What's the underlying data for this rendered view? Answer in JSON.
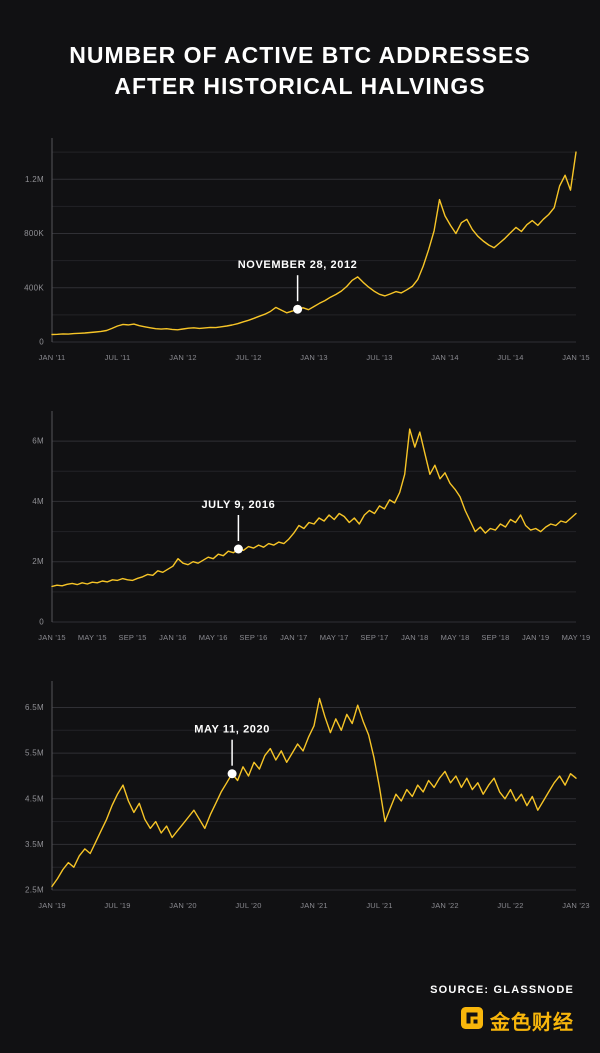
{
  "title": {
    "line1": "NUMBER OF ACTIVE BTC ADDRESSES",
    "line2": "AFTER HISTORICAL HALVINGS"
  },
  "footer": {
    "source": "SOURCE: GLASSNODE",
    "brand": "金色财经",
    "brand_icon": "jinse-logo-icon"
  },
  "colors": {
    "background": "#111113",
    "line": "#F7C527",
    "grid": "#303035",
    "grid_minor": "#232327",
    "axis": "#55555a",
    "tick_text": "#909095",
    "annotation": "#FFFFFF",
    "brand": "#F8B60B"
  },
  "chart_data": [
    {
      "type": "line",
      "y_unit": "addresses (K = thousands, M = millions)",
      "ylim": [
        0,
        1460
      ],
      "y_major_ticks": [
        {
          "value": 0,
          "label": "0"
        },
        {
          "value": 400,
          "label": "400K"
        },
        {
          "value": 800,
          "label": "800K"
        },
        {
          "value": 1200,
          "label": "1.2M"
        }
      ],
      "y_minor_ticks": [
        200,
        600,
        1000,
        1400
      ],
      "x_tick_labels": [
        "JAN '11",
        "JUL '11",
        "JAN '12",
        "JUL '12",
        "JAN '13",
        "JUL '13",
        "JAN '14",
        "JUL '14",
        "JAN '15"
      ],
      "values": [
        55,
        57,
        60,
        58,
        62,
        64,
        66,
        70,
        74,
        78,
        85,
        100,
        118,
        130,
        126,
        132,
        120,
        112,
        105,
        98,
        95,
        98,
        93,
        90,
        96,
        102,
        105,
        100,
        104,
        108,
        106,
        112,
        118,
        125,
        135,
        148,
        160,
        175,
        190,
        205,
        225,
        255,
        235,
        215,
        228,
        242,
        252,
        238,
        262,
        285,
        305,
        330,
        350,
        375,
        410,
        455,
        480,
        440,
        405,
        375,
        352,
        340,
        355,
        372,
        362,
        385,
        410,
        460,
        560,
        680,
        820,
        1050,
        930,
        860,
        800,
        880,
        905,
        830,
        780,
        745,
        715,
        695,
        730,
        765,
        805,
        845,
        815,
        865,
        895,
        860,
        905,
        940,
        990,
        1150,
        1230,
        1120,
        1400
      ],
      "annotation": {
        "label": "NOVEMBER 28, 2012",
        "point_index": 45,
        "value": 242
      }
    },
    {
      "type": "line",
      "y_unit": "addresses (M = millions)",
      "ylim": [
        0,
        6.8
      ],
      "y_major_ticks": [
        {
          "value": 0,
          "label": "0"
        },
        {
          "value": 2,
          "label": "2M"
        },
        {
          "value": 4,
          "label": "4M"
        },
        {
          "value": 6,
          "label": "6M"
        }
      ],
      "y_minor_ticks": [
        1,
        3,
        5
      ],
      "x_tick_labels": [
        "JAN '15",
        "MAY '15",
        "SEP '15",
        "JAN '16",
        "MAY '16",
        "SEP '16",
        "JAN '17",
        "MAY '17",
        "SEP '17",
        "JAN '18",
        "MAY '18",
        "SEP '18",
        "JAN '19",
        "MAY '19"
      ],
      "values": [
        1.18,
        1.22,
        1.2,
        1.25,
        1.28,
        1.24,
        1.3,
        1.26,
        1.32,
        1.3,
        1.36,
        1.33,
        1.4,
        1.38,
        1.44,
        1.4,
        1.38,
        1.45,
        1.5,
        1.58,
        1.55,
        1.7,
        1.65,
        1.75,
        1.85,
        2.1,
        1.95,
        1.9,
        2.0,
        1.95,
        2.05,
        2.15,
        2.1,
        2.25,
        2.2,
        2.35,
        2.3,
        2.42,
        2.38,
        2.5,
        2.45,
        2.55,
        2.48,
        2.6,
        2.55,
        2.65,
        2.6,
        2.75,
        2.95,
        3.2,
        3.1,
        3.3,
        3.25,
        3.45,
        3.35,
        3.55,
        3.4,
        3.6,
        3.5,
        3.3,
        3.45,
        3.25,
        3.55,
        3.7,
        3.6,
        3.85,
        3.75,
        4.05,
        3.95,
        4.3,
        4.9,
        6.4,
        5.8,
        6.3,
        5.6,
        4.9,
        5.2,
        4.75,
        4.95,
        4.6,
        4.4,
        4.15,
        3.7,
        3.35,
        3.0,
        3.15,
        2.95,
        3.1,
        3.05,
        3.25,
        3.15,
        3.4,
        3.3,
        3.55,
        3.2,
        3.05,
        3.1,
        3.0,
        3.15,
        3.25,
        3.2,
        3.35,
        3.3,
        3.45,
        3.6
      ],
      "annotation": {
        "label": "JULY 9, 2016",
        "point_index": 37,
        "value": 2.42
      }
    },
    {
      "type": "line",
      "y_unit": "addresses (M = millions)",
      "ylim": [
        2.5,
        6.95
      ],
      "y_major_ticks": [
        {
          "value": 2.5,
          "label": "2.5M"
        },
        {
          "value": 3.5,
          "label": "3.5M"
        },
        {
          "value": 4.5,
          "label": "4.5M"
        },
        {
          "value": 5.5,
          "label": "5.5M"
        },
        {
          "value": 6.5,
          "label": "6.5M"
        }
      ],
      "y_minor_ticks": [
        3.0,
        4.0,
        5.0,
        6.0
      ],
      "x_tick_labels": [
        "JAN '19",
        "JUL '19",
        "JAN '20",
        "JUL '20",
        "JAN '21",
        "JUL '21",
        "JAN '22",
        "JUL '22",
        "JAN '23"
      ],
      "values": [
        2.58,
        2.75,
        2.95,
        3.1,
        3.0,
        3.25,
        3.4,
        3.3,
        3.55,
        3.8,
        4.05,
        4.35,
        4.6,
        4.8,
        4.45,
        4.2,
        4.4,
        4.05,
        3.85,
        4.0,
        3.75,
        3.9,
        3.65,
        3.8,
        3.95,
        4.1,
        4.25,
        4.05,
        3.85,
        4.15,
        4.4,
        4.65,
        4.85,
        5.05,
        4.9,
        5.2,
        5.0,
        5.3,
        5.15,
        5.45,
        5.6,
        5.35,
        5.55,
        5.3,
        5.5,
        5.7,
        5.55,
        5.85,
        6.1,
        6.7,
        6.3,
        5.95,
        6.25,
        6.0,
        6.35,
        6.15,
        6.55,
        6.2,
        5.9,
        5.4,
        4.75,
        4.0,
        4.3,
        4.6,
        4.45,
        4.7,
        4.55,
        4.8,
        4.65,
        4.9,
        4.75,
        4.95,
        5.1,
        4.85,
        5.0,
        4.75,
        4.95,
        4.7,
        4.85,
        4.6,
        4.8,
        4.95,
        4.65,
        4.5,
        4.7,
        4.45,
        4.6,
        4.35,
        4.55,
        4.25,
        4.45,
        4.65,
        4.85,
        5.0,
        4.8,
        5.05,
        4.95
      ],
      "annotation": {
        "label": "MAY 11, 2020",
        "point_index": 33,
        "value": 5.05
      }
    }
  ]
}
